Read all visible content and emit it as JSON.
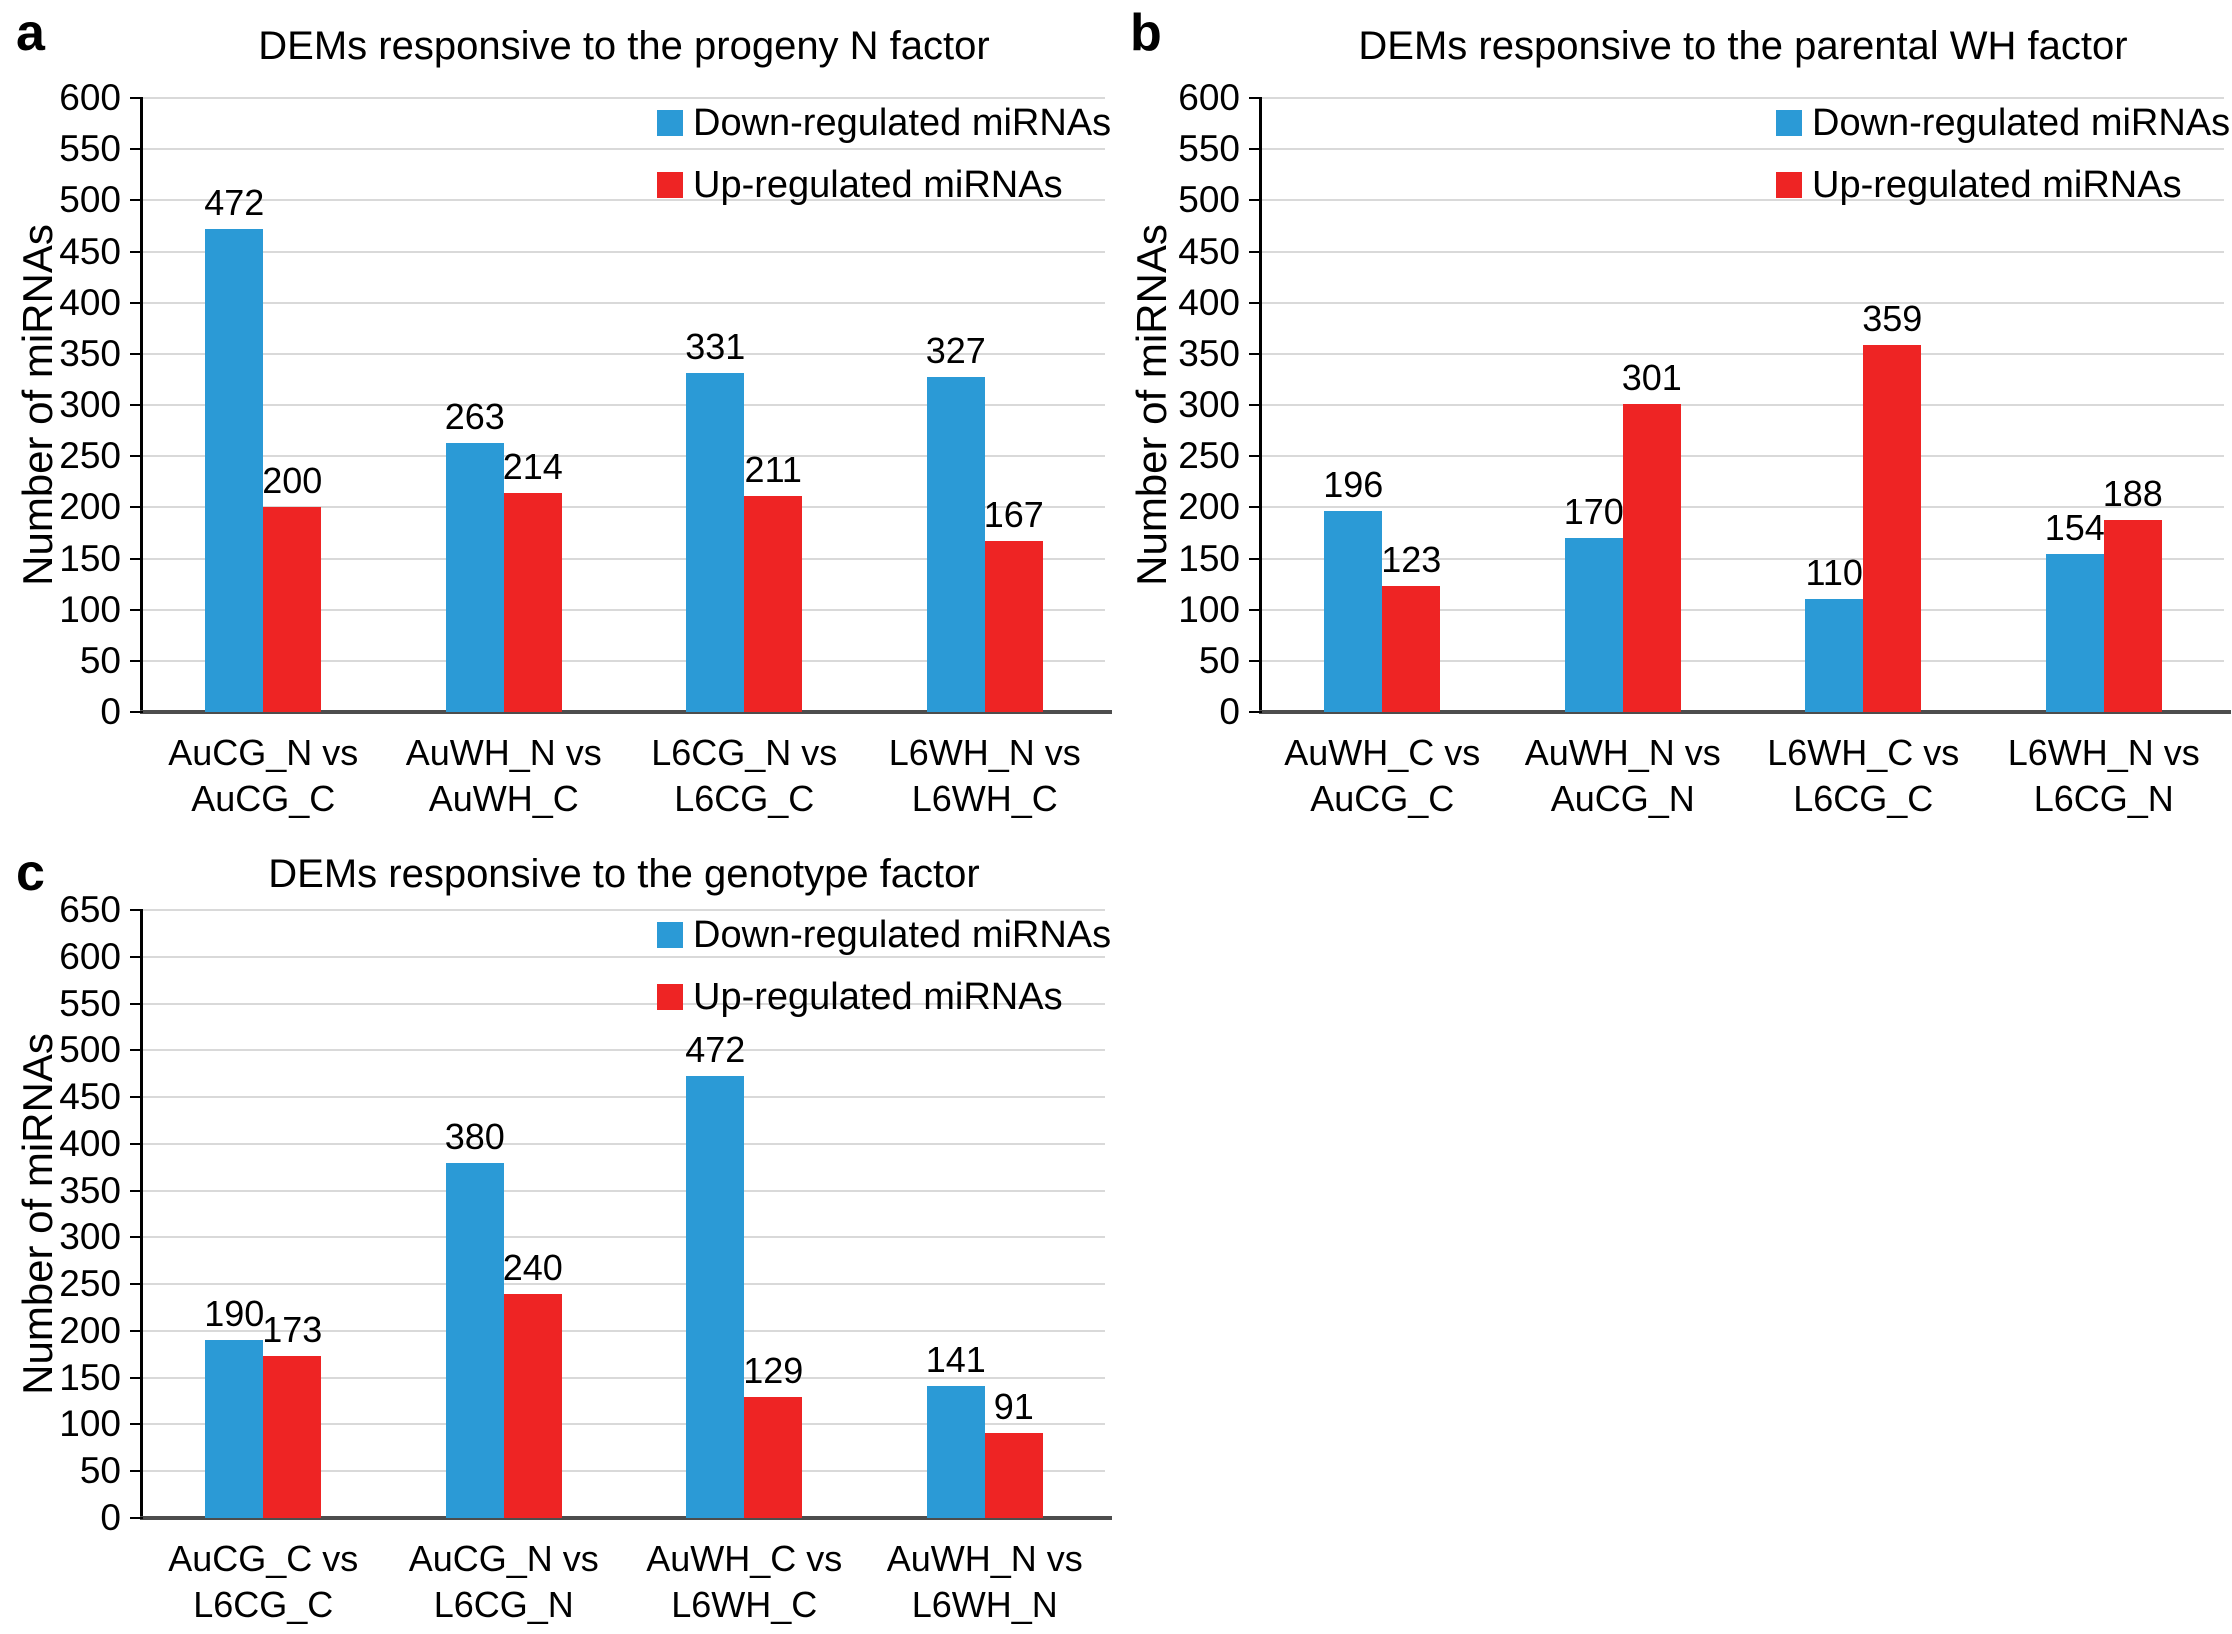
{
  "figure_meta": {
    "colors": {
      "down": "#2B9AD6",
      "up": "#EE2424"
    },
    "gridline_color": "#d9d9d9"
  },
  "chart_data": [
    {
      "type": "bar",
      "panel": "a",
      "title": "DEMs responsive to the progeny N factor",
      "xlabel": "",
      "ylabel": "Number of miRNAs",
      "ylim": [
        0,
        600
      ],
      "ytick_step": 50,
      "grid": true,
      "legend_position": "top-right",
      "categories": [
        "AuCG_N vs\nAuCG_C",
        "AuWH_N vs\nAuWH_C",
        "L6CG_N vs\nL6CG_C",
        "L6WH_N vs\nL6WH_C"
      ],
      "series": [
        {
          "name": "Down-regulated miRNAs",
          "color": "#2B9AD6",
          "values": [
            472,
            263,
            331,
            327
          ]
        },
        {
          "name": "Up-regulated miRNAs",
          "color": "#EE2424",
          "values": [
            200,
            214,
            211,
            167
          ]
        }
      ]
    },
    {
      "type": "bar",
      "panel": "b",
      "title": "DEMs responsive to the parental WH factor",
      "xlabel": "",
      "ylabel": "Number of miRNAs",
      "ylim": [
        0,
        600
      ],
      "ytick_step": 50,
      "grid": true,
      "legend_position": "top-right",
      "categories": [
        "AuWH_C vs\nAuCG_C",
        "AuWH_N vs\nAuCG_N",
        "L6WH_C vs\nL6CG_C",
        "L6WH_N vs\nL6CG_N"
      ],
      "series": [
        {
          "name": "Down-regulated miRNAs",
          "color": "#2B9AD6",
          "values": [
            196,
            170,
            110,
            154
          ]
        },
        {
          "name": "Up-regulated miRNAs",
          "color": "#EE2424",
          "values": [
            123,
            301,
            359,
            188
          ]
        }
      ]
    },
    {
      "type": "bar",
      "panel": "c",
      "title": "DEMs responsive to the genotype factor",
      "xlabel": "",
      "ylabel": "Number of miRNAs",
      "ylim": [
        0,
        650
      ],
      "ytick_step": 50,
      "grid": true,
      "legend_position": "top-right",
      "categories": [
        "AuCG_C vs\nL6CG_C",
        "AuCG_N vs\nL6CG_N",
        "AuWH_C vs\nL6WH_C",
        "AuWH_N vs\nL6WH_N"
      ],
      "series": [
        {
          "name": "Down-regulated miRNAs",
          "color": "#2B9AD6",
          "values": [
            190,
            380,
            472,
            141
          ]
        },
        {
          "name": "Up-regulated miRNAs",
          "color": "#EE2424",
          "values": [
            173,
            240,
            129,
            91
          ]
        }
      ]
    }
  ]
}
